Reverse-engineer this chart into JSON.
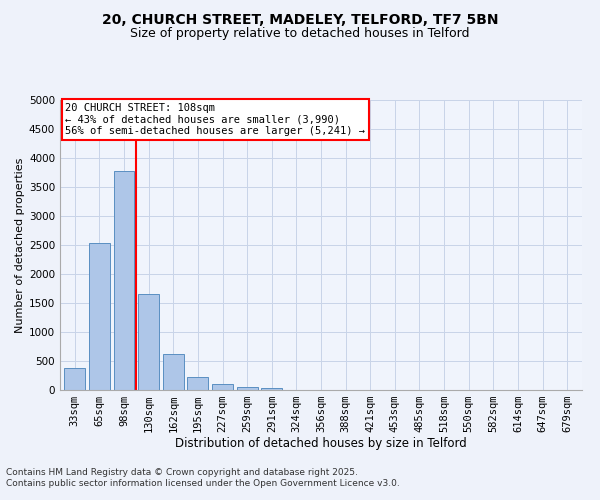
{
  "title1": "20, CHURCH STREET, MADELEY, TELFORD, TF7 5BN",
  "title2": "Size of property relative to detached houses in Telford",
  "xlabel": "Distribution of detached houses by size in Telford",
  "ylabel": "Number of detached properties",
  "categories": [
    "33sqm",
    "65sqm",
    "98sqm",
    "130sqm",
    "162sqm",
    "195sqm",
    "227sqm",
    "259sqm",
    "291sqm",
    "324sqm",
    "356sqm",
    "388sqm",
    "421sqm",
    "453sqm",
    "485sqm",
    "518sqm",
    "550sqm",
    "582sqm",
    "614sqm",
    "647sqm",
    "679sqm"
  ],
  "values": [
    380,
    2530,
    3780,
    1650,
    620,
    230,
    100,
    55,
    35,
    0,
    0,
    0,
    0,
    0,
    0,
    0,
    0,
    0,
    0,
    0,
    0
  ],
  "bar_color": "#aec6e8",
  "bar_edge_color": "#5a8fc2",
  "vline_x": 2.5,
  "vline_color": "red",
  "annotation_text": "20 CHURCH STREET: 108sqm\n← 43% of detached houses are smaller (3,990)\n56% of semi-detached houses are larger (5,241) →",
  "annotation_box_color": "red",
  "ylim": [
    0,
    5000
  ],
  "yticks": [
    0,
    500,
    1000,
    1500,
    2000,
    2500,
    3000,
    3500,
    4000,
    4500,
    5000
  ],
  "footnote1": "Contains HM Land Registry data © Crown copyright and database right 2025.",
  "footnote2": "Contains public sector information licensed under the Open Government Licence v3.0.",
  "bg_color": "#eef2fa",
  "plot_bg_color": "#f0f4fc",
  "grid_color": "#c8d4e8",
  "title1_fontsize": 10,
  "title2_fontsize": 9,
  "xlabel_fontsize": 8.5,
  "ylabel_fontsize": 8,
  "tick_fontsize": 7.5,
  "footnote_fontsize": 6.5,
  "annot_fontsize": 7.5
}
